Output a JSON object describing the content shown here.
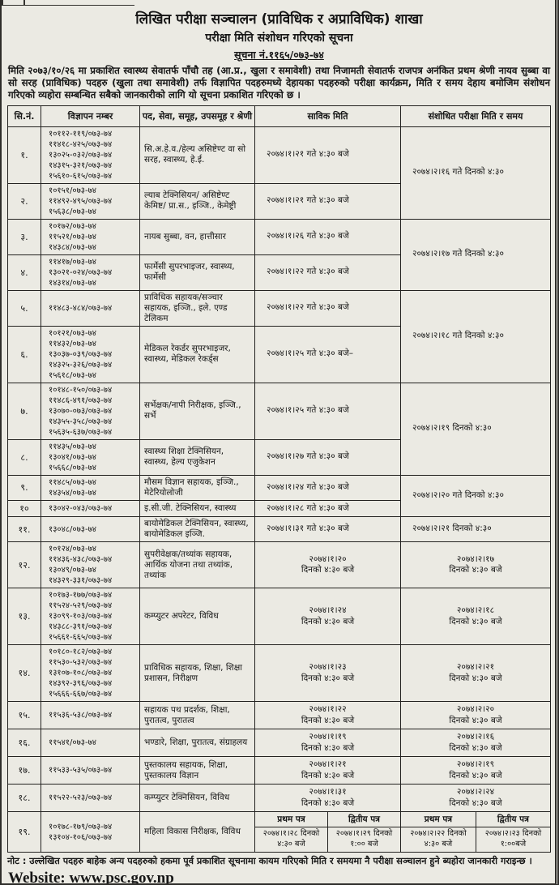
{
  "page": {
    "title": "लिखित परीक्षा सञ्चालन (प्राविधिक र अप्राविधिक) शाखा",
    "subtitle": "परीक्षा मिति संशोधन गरिएको सूचना",
    "notice_no": "सूचना नं.११६५/०७३-७४",
    "intro": "मिति २०७३/१०/२६ मा प्रकाशित स्वास्थ्य सेवातर्फ पाँचौ तह (आ.प्र., खुला र समावेशी) तथा निजामती सेवातर्फ राजपत्र अनंकित प्रथम श्रेणी नायव सुब्बा वा सो सरह (प्राविधिक) पदहरु (खुला तथा समावेशी) तर्फ विज्ञापित पदहरुमध्ये देहायका पदहरुको परीक्षा कार्यक्रम, मिति र समय देहाय बमोजिम संशोधन गरिएको व्यहोरा सम्बन्धित सबैको जानकारीको लागि यो सूचना प्रकाशित गरिएको छ ।",
    "note": "नोट : उल्लेखित पदहरु बाहेक अन्य पदहरुको हकमा पूर्व प्रकाशित सूचनामा कायम गरिएको मिति र समयमा नै परीक्षा सञ्चालन हुने ब्यहोरा जानकारी गराइन्छ ।",
    "website": "Website: www.psc.gov.np"
  },
  "table": {
    "headers": [
      "सि.नं.",
      "विज्ञापन नम्बर",
      "पद, सेवा, समूह, उपसमूह र श्रेणी",
      "साविक मिति",
      "संशोधित परीक्षा मिति र समय"
    ],
    "sub_headers": {
      "first": "प्रथम पत्र",
      "second": "द्वितीय पत्र"
    },
    "rows": [
      {
        "sn": "१.",
        "ads": [
          "१०११२-११९/०७३-७४",
          "११४१८-४२५/०७३-७४",
          "१३०२५-०३२/०७३-७४",
          "१४३१५-३२१/०७३-७४",
          "१५६१०-६१५/०७३-७४"
        ],
        "position": "सि.अ.हे.व./हेल्य असिष्टेण्ट वा सो सरह, स्वास्थ्य, हे.ई.",
        "original": [
          "२०७४।१।२१ गते ४:३० बजे"
        ],
        "revised": {
          "lines": [
            "२०७४।२।१६ गते दिनको ४:३०"
          ],
          "rowspan": 2
        }
      },
      {
        "sn": "२.",
        "ads": [
          "१०१५१/०७३-७४",
          "११४९२-४९५/०७३-७४",
          "१५६३८/०७३-७४"
        ],
        "position": "ल्याब टेक्निसियन/ असिष्टेण्ट केमिष्ट/ प्रा.स., इञ्जि., केमेष्ट्री",
        "original": [
          "२०७४।१।२१ गते ४:३० बजे"
        ],
        "revised": null
      },
      {
        "sn": "३.",
        "ads": [
          "१०१७२/०७३-७४",
          "११५२१/०७३-७४",
          "१४३८४/०७३-७४"
        ],
        "position": "नायब सुब्बा, वन, हात्तीसार",
        "original": [
          "२०७४।१।२६ गते ४:३० बजे"
        ],
        "revised": {
          "lines": [
            "२०७४।२।१७ गते दिनको ४:३०"
          ],
          "rowspan": 2
        }
      },
      {
        "sn": "४.",
        "ads": [
          "११४१७/०७३-७४",
          "१३०२१-०२४/०७३-७४",
          "१४३१४/०७३-७४"
        ],
        "position": "फार्मेसी सुपरभाइजर, स्वास्थ्य, फार्मेसी",
        "original": [
          "२०७४।१।२२ गते ४:३० बजे"
        ],
        "revised": null
      },
      {
        "sn": "५.",
        "ads": [
          "११४८३-४८४/०७३-७४"
        ],
        "position": "प्राविधिक सहायक/सञ्चार सहायक, इञ्जि., इले. एण्ड टेलिकम",
        "original": [
          "२०७४।१।२२ गते ४:३० बजे"
        ],
        "revised": {
          "lines": [
            "२०७४।२।१८ गते दिनको ४:३०"
          ],
          "rowspan": 2
        }
      },
      {
        "sn": "६.",
        "ads": [
          "१०१२१/०७३-७४",
          "११४३२/०७३-७४",
          "१३०३७-०३९/०७३-७४",
          "१४३२५-३२६/०७३-७४",
          "१५६१८/०७३-७४"
        ],
        "position": "मेडिकल रेकर्डर सुपरभाइजर, स्वास्थ्य, मेडिकल रेकर्ड्स",
        "original": [
          "२०७४।१।२५ गते ४:३० बजे–"
        ],
        "revised": null
      },
      {
        "sn": "७.",
        "ads": [
          "१०१४८-१५०/०७३-७४",
          "११४८६-४९१/०७३-७४",
          "१३०७०-०७३/०७३-७४",
          "१४३५५-३५८/०७३-७४",
          "१५६३५-६३७/०७३-७४"
        ],
        "position": "सर्भेक्षक/नापी निरीक्षक, इञ्जि., सर्भे",
        "original": [
          "२०७४।१।२५ गते ४:३० बजे"
        ],
        "revised": {
          "lines": [
            "२०७४।२।१९ दिनको ४:३०"
          ],
          "rowspan": 2
        }
      },
      {
        "sn": "८.",
        "ads": [
          "११४३५/०७३-७४",
          "१३०४१/०७३-७४",
          "१५६६८/०७३-७४"
        ],
        "position": "स्वास्थ्य शिक्षा टेक्निसियन, स्वास्थ्य, हेल्य एजुकेशन",
        "original": [
          "२०७४।१।२७ गते ४:३० बजे"
        ],
        "revised": null
      },
      {
        "sn": "९.",
        "ads": [
          "११४८५/०७३-७४",
          "१४३५४/०७३-७४"
        ],
        "position": "मौसम विज्ञान सहायक, इञ्जि., मेटेरियोलोजी",
        "original": [
          "२०७४।१।२४ गते ४:३० बजे"
        ],
        "revised": {
          "lines": [
            "२०७४।२।२० गते दिनको ४:३०"
          ],
          "rowspan": 2
        }
      },
      {
        "sn": "१०",
        "ads": [
          "१३०४२-०४३/०७३-७४"
        ],
        "position": "इ.सी.जी. टेक्निसियन, स्वास्थ्य",
        "original": [
          "२०७४।१।२८ गते ४:३० बजे"
        ],
        "revised": null
      },
      {
        "sn": "११.",
        "ads": [
          "१३०४८/०७३-७४"
        ],
        "position": "बायोमेडिकल टेक्निसियन, स्वास्थ्य, बायोमेडिकल इञ्जि.",
        "original": [
          "२०७४।१।३१ गते ४:३० बजे"
        ],
        "revised": {
          "lines": [
            "२०७४।२।२१ दिनको ४:३०"
          ],
          "rowspan": 1
        }
      },
      {
        "sn": "१२.",
        "ads": [
          "१०१२४/०७३-७४",
          "११४३६-४३८/०७३-७४",
          "१३०४९/०७३-७४",
          "१४३२९-३३१/०७३-७४"
        ],
        "position": "सुपरीवेक्षक/तथ्यांक सहायक, आर्थिक योजना तथा तथ्यांक, तथ्यांक",
        "original": [
          "२०७४।१।२०",
          "दिनको ४:३० बजे"
        ],
        "revised": {
          "lines": [
            "२०७४।२।१७",
            "दिनको ४:३० बजे"
          ],
          "rowspan": 1
        }
      },
      {
        "sn": "१३.",
        "ads": [
          "१०१७३-१७७/०७३-७४",
          "११५२४-५२९/०७३-७४",
          "१३०९९-१०३/०७३-७४",
          "१४३८८-३९१/०७३-७४",
          "१५६६१-६६५/०७३-७४"
        ],
        "position": "कम्प्युटर अपरेटर, विविध",
        "original": [
          "२०७४।१।२४",
          "दिनको ४:३० बजे"
        ],
        "revised": {
          "lines": [
            "२०७४।२।१८",
            "दिनको ४:३० बजे"
          ],
          "rowspan": 1
        }
      },
      {
        "sn": "१४.",
        "ads": [
          "१०१८०-१८२/०७३-७४",
          "११५३०-५३२/०७३-७४",
          "१३१०७-१०८/०७३-७४",
          "१४३९२-३९६/०७३-७४",
          "१५६६६-६६७/०७३-७४"
        ],
        "position": "प्राविधिक सहायक, शिक्षा, शिक्षा प्रशासन, निरीक्षण",
        "original": [
          "२०७४।१।२३",
          "दिनको ४:३० बजे"
        ],
        "revised": {
          "lines": [
            "२०७४।२।२१",
            "दिनको ४:३० बजे"
          ],
          "rowspan": 1
        }
      },
      {
        "sn": "१५.",
        "ads": [
          "११५३६-५३८/०७३-७४"
        ],
        "position": "सहायक पथ प्रदर्शक, शिक्षा, पुरातत्व, पुरातत्व",
        "original": [
          "२०७४।१।२२",
          "दिनको ४:३० बजे"
        ],
        "revised": {
          "lines": [
            "२०७४।२।२०",
            "दिनको ४:३० बजे"
          ],
          "rowspan": 1
        }
      },
      {
        "sn": "१६.",
        "ads": [
          "११५४१/०७३-७४"
        ],
        "position": "भण्डारे, शिक्षा, पुरातत्व, संग्राहलय",
        "original": [
          "२०७४।१।१९",
          "दिनको ४:३० बजे"
        ],
        "revised": {
          "lines": [
            "२०७४।२।१६",
            "दिनको ४:३० बजे"
          ],
          "rowspan": 1
        }
      },
      {
        "sn": "१७.",
        "ads": [
          "११५३३-५३५/०७३-७४"
        ],
        "position": "पुस्तकालय सहायक, शिक्षा, पुस्तकालय विज्ञान",
        "original": [
          "२०७४।१।२१",
          "दिनको ४:३० बजे"
        ],
        "revised": {
          "lines": [
            "२०७४।२।१९",
            "दिनको ४:३० बजे"
          ],
          "rowspan": 1
        }
      },
      {
        "sn": "१८.",
        "ads": [
          "११५२२-५२३/०७३-७४"
        ],
        "position": "कम्प्युटर टेक्निसियन, विविध",
        "original": [
          "२०७४।१।३१",
          "दिनको ४:३० बजे"
        ],
        "revised": {
          "lines": [
            "२०७४।२।२४",
            "दिनको ४:३० बजे"
          ],
          "rowspan": 1
        }
      },
      {
        "sn": "१९.",
        "ads": [
          "१०१७८-१७९/०७३-७४",
          "१३१०४-१०६/०७३-७४"
        ],
        "position": "महिला विकास निरीक्षक, विविध",
        "split": {
          "original": {
            "first": "२०७४।१।२८ दिनको ४:३० बजे",
            "second": "२०७४।१।२९ दिनको १:०० बजे"
          },
          "revised": {
            "first": "२०७४।२।२२ दिनको ४:३० बजे",
            "second": "२०७४।२।२३ दिनको १:००बजे"
          }
        }
      }
    ]
  }
}
